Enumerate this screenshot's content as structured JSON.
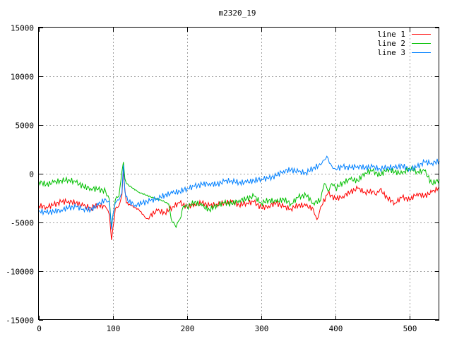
{
  "chart_data": {
    "type": "line",
    "title": "m2320_19",
    "xlim": [
      0,
      540
    ],
    "ylim": [
      -15000,
      15000
    ],
    "x_ticks": [
      0,
      100,
      200,
      300,
      400,
      500
    ],
    "y_ticks": [
      -15000,
      -10000,
      -5000,
      0,
      5000,
      10000,
      15000
    ],
    "grid": true,
    "legend_position": "top-right",
    "series": [
      {
        "name": "line 1",
        "color": "#ff0000",
        "points": [
          [
            0,
            -3300
          ],
          [
            10,
            -3400
          ],
          [
            20,
            -3200
          ],
          [
            30,
            -2900
          ],
          [
            40,
            -2800
          ],
          [
            50,
            -3000
          ],
          [
            60,
            -3300
          ],
          [
            70,
            -3500
          ],
          [
            80,
            -3200
          ],
          [
            90,
            -3400
          ],
          [
            95,
            -4200
          ],
          [
            98,
            -6800
          ],
          [
            100,
            -5500
          ],
          [
            103,
            -3600
          ],
          [
            108,
            -3300
          ],
          [
            112,
            -2200
          ],
          [
            114,
            400
          ],
          [
            116,
            -1600
          ],
          [
            118,
            -3000
          ],
          [
            125,
            -3300
          ],
          [
            135,
            -3700
          ],
          [
            145,
            -4600
          ],
          [
            150,
            -4300
          ],
          [
            160,
            -3800
          ],
          [
            170,
            -4000
          ],
          [
            180,
            -3400
          ],
          [
            190,
            -3000
          ],
          [
            200,
            -3400
          ],
          [
            210,
            -3100
          ],
          [
            220,
            -3000
          ],
          [
            230,
            -3300
          ],
          [
            240,
            -3100
          ],
          [
            250,
            -3000
          ],
          [
            260,
            -2900
          ],
          [
            270,
            -3200
          ],
          [
            280,
            -3000
          ],
          [
            290,
            -2900
          ],
          [
            300,
            -3500
          ],
          [
            310,
            -3300
          ],
          [
            320,
            -3000
          ],
          [
            330,
            -3400
          ],
          [
            340,
            -3600
          ],
          [
            350,
            -3200
          ],
          [
            360,
            -3300
          ],
          [
            370,
            -3600
          ],
          [
            375,
            -4700
          ],
          [
            380,
            -3400
          ],
          [
            390,
            -2000
          ],
          [
            400,
            -2600
          ],
          [
            410,
            -2300
          ],
          [
            420,
            -1900
          ],
          [
            430,
            -1500
          ],
          [
            440,
            -1900
          ],
          [
            450,
            -1800
          ],
          [
            455,
            -2200
          ],
          [
            460,
            -1600
          ],
          [
            470,
            -2500
          ],
          [
            480,
            -3000
          ],
          [
            490,
            -2400
          ],
          [
            500,
            -2700
          ],
          [
            510,
            -2000
          ],
          [
            520,
            -2300
          ],
          [
            530,
            -1900
          ],
          [
            540,
            -1400
          ]
        ]
      },
      {
        "name": "line 2",
        "color": "#00c000",
        "points": [
          [
            0,
            -800
          ],
          [
            10,
            -1100
          ],
          [
            20,
            -900
          ],
          [
            30,
            -700
          ],
          [
            40,
            -600
          ],
          [
            50,
            -900
          ],
          [
            60,
            -1300
          ],
          [
            70,
            -1500
          ],
          [
            80,
            -1600
          ],
          [
            90,
            -1800
          ],
          [
            95,
            -2600
          ],
          [
            98,
            -5500
          ],
          [
            100,
            -4200
          ],
          [
            103,
            -2700
          ],
          [
            108,
            -2300
          ],
          [
            112,
            200
          ],
          [
            114,
            1200
          ],
          [
            116,
            -500
          ],
          [
            118,
            -1000
          ],
          [
            125,
            -1400
          ],
          [
            135,
            -1900
          ],
          [
            145,
            -2200
          ],
          [
            155,
            -2500
          ],
          [
            165,
            -2700
          ],
          [
            175,
            -3100
          ],
          [
            180,
            -5000
          ],
          [
            185,
            -5500
          ],
          [
            190,
            -4700
          ],
          [
            195,
            -3300
          ],
          [
            200,
            -3400
          ],
          [
            210,
            -2900
          ],
          [
            220,
            -3300
          ],
          [
            230,
            -3700
          ],
          [
            240,
            -3200
          ],
          [
            250,
            -3000
          ],
          [
            260,
            -3100
          ],
          [
            270,
            -2700
          ],
          [
            280,
            -2600
          ],
          [
            290,
            -2300
          ],
          [
            300,
            -3000
          ],
          [
            310,
            -2700
          ],
          [
            320,
            -2900
          ],
          [
            330,
            -2600
          ],
          [
            340,
            -3100
          ],
          [
            350,
            -2400
          ],
          [
            360,
            -2200
          ],
          [
            370,
            -3000
          ],
          [
            380,
            -2700
          ],
          [
            385,
            -1000
          ],
          [
            390,
            -1800
          ],
          [
            395,
            -1000
          ],
          [
            400,
            -1500
          ],
          [
            410,
            -900
          ],
          [
            420,
            -600
          ],
          [
            430,
            -700
          ],
          [
            440,
            100
          ],
          [
            450,
            300
          ],
          [
            460,
            -200
          ],
          [
            470,
            500
          ],
          [
            480,
            200
          ],
          [
            490,
            0
          ],
          [
            500,
            600
          ],
          [
            510,
            200
          ],
          [
            520,
            300
          ],
          [
            530,
            -1000
          ],
          [
            540,
            -600
          ]
        ]
      },
      {
        "name": "line 3",
        "color": "#0080ff",
        "points": [
          [
            0,
            -3800
          ],
          [
            10,
            -4000
          ],
          [
            20,
            -3900
          ],
          [
            30,
            -3700
          ],
          [
            40,
            -3500
          ],
          [
            50,
            -3400
          ],
          [
            60,
            -3600
          ],
          [
            70,
            -3700
          ],
          [
            80,
            -3200
          ],
          [
            90,
            -2600
          ],
          [
            95,
            -2800
          ],
          [
            98,
            -5700
          ],
          [
            100,
            -4200
          ],
          [
            103,
            -3000
          ],
          [
            108,
            -2700
          ],
          [
            112,
            -2000
          ],
          [
            114,
            900
          ],
          [
            116,
            -1800
          ],
          [
            120,
            -2800
          ],
          [
            130,
            -3200
          ],
          [
            140,
            -3000
          ],
          [
            150,
            -2800
          ],
          [
            160,
            -2500
          ],
          [
            170,
            -2200
          ],
          [
            180,
            -2000
          ],
          [
            190,
            -1800
          ],
          [
            200,
            -1500
          ],
          [
            210,
            -1300
          ],
          [
            220,
            -1100
          ],
          [
            230,
            -1000
          ],
          [
            240,
            -1100
          ],
          [
            250,
            -800
          ],
          [
            260,
            -700
          ],
          [
            270,
            -900
          ],
          [
            280,
            -900
          ],
          [
            290,
            -700
          ],
          [
            300,
            -500
          ],
          [
            310,
            -500
          ],
          [
            320,
            -200
          ],
          [
            330,
            300
          ],
          [
            340,
            400
          ],
          [
            350,
            200
          ],
          [
            360,
            100
          ],
          [
            370,
            600
          ],
          [
            380,
            900
          ],
          [
            385,
            1400
          ],
          [
            390,
            1600
          ],
          [
            395,
            800
          ],
          [
            400,
            500
          ],
          [
            410,
            700
          ],
          [
            420,
            600
          ],
          [
            430,
            800
          ],
          [
            440,
            600
          ],
          [
            450,
            700
          ],
          [
            460,
            500
          ],
          [
            470,
            700
          ],
          [
            480,
            600
          ],
          [
            490,
            800
          ],
          [
            500,
            500
          ],
          [
            510,
            700
          ],
          [
            520,
            1200
          ],
          [
            530,
            1100
          ],
          [
            540,
            1300
          ]
        ]
      }
    ]
  }
}
